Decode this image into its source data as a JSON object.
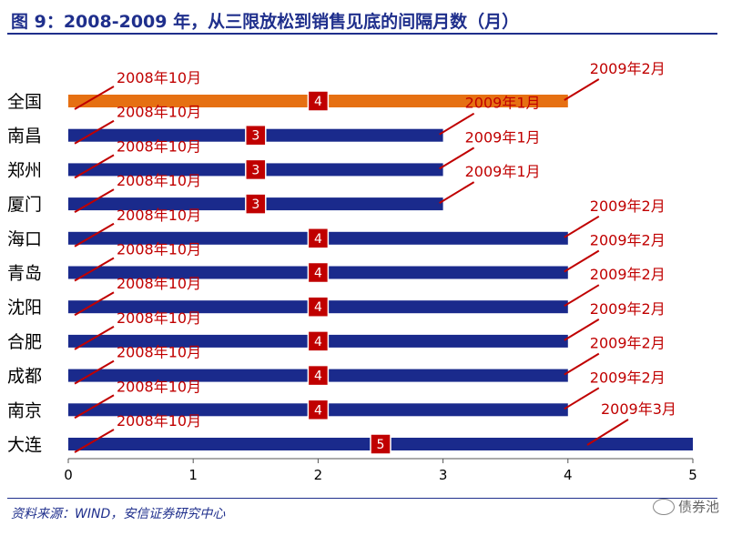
{
  "title": "图 9：2008-2009 年，从三限放松到销售见底的间隔月数（月）",
  "source": "资料来源：WIND，安信证券研究中心",
  "watermark": "债券池",
  "colors": {
    "bar": "#1a2a8c",
    "highlight": "#e67012",
    "annotation": "#c00000",
    "title": "#1f2f8c"
  },
  "chart_data": {
    "type": "bar",
    "orientation": "horizontal",
    "categories": [
      "全国",
      "南昌",
      "郑州",
      "厦门",
      "海口",
      "青岛",
      "沈阳",
      "合肥",
      "成都",
      "南京",
      "大连"
    ],
    "values": [
      4,
      3,
      3,
      3,
      4,
      4,
      4,
      4,
      4,
      4,
      5
    ],
    "value_labels": [
      "4",
      "3",
      "3",
      "3",
      "4",
      "4",
      "4",
      "4",
      "4",
      "4",
      "5"
    ],
    "start_labels": [
      "2008年10月",
      "2008年10月",
      "2008年10月",
      "2008年10月",
      "2008年10月",
      "2008年10月",
      "2008年10月",
      "2008年10月",
      "2008年10月",
      "2008年10月",
      "2008年10月"
    ],
    "end_labels": [
      "2009年2月",
      "2009年1月",
      "2009年1月",
      "2009年1月",
      "2009年2月",
      "2009年2月",
      "2009年2月",
      "2009年2月",
      "2009年2月",
      "2009年2月",
      "2009年3月"
    ],
    "highlight_index": 0,
    "xlim": [
      0,
      5
    ],
    "xticks": [
      "0",
      "1",
      "2",
      "3",
      "4",
      "5"
    ],
    "grid": false,
    "legend": "none"
  }
}
